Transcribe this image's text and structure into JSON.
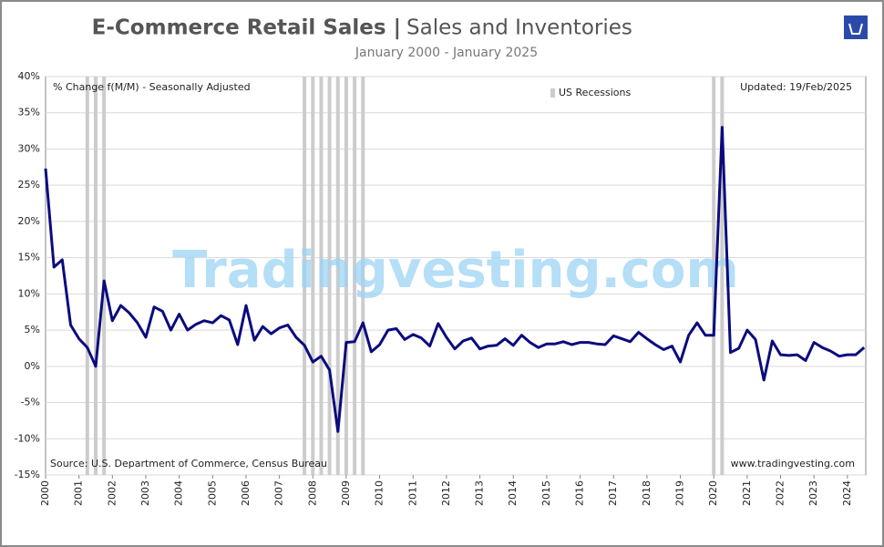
{
  "chart_data": {
    "type": "line",
    "title": "E-Commerce Retail Sales |",
    "title_suffix": "Sales and Inventories",
    "subtitle": "January 2000 - January 2025",
    "y_annotation": "% Change f(M/M) - Seasonally Adjusted",
    "updated": "Updated: 19/Feb/2025",
    "source": "Source: U.S. Department of Commerce, Census Bureau",
    "website": "www.tradingvesting.com",
    "watermark": "Tradingvesting.com",
    "recession_label": "US Recessions",
    "recession_color": "#cccccc",
    "recessions": [
      2001.25,
      2001.5,
      2001.75,
      2007.75,
      2008,
      2008.25,
      2008.5,
      2008.75,
      2009,
      2009.25,
      2009.5,
      2020,
      2020.25
    ],
    "x": [
      2000,
      2000.25,
      2000.5,
      2000.75,
      2001,
      2001.25,
      2001.5,
      2001.75,
      2002,
      2002.25,
      2002.5,
      2002.75,
      2003,
      2003.25,
      2003.5,
      2003.75,
      2004,
      2004.25,
      2004.5,
      2004.75,
      2005,
      2005.25,
      2005.5,
      2005.75,
      2006,
      2006.25,
      2006.5,
      2006.75,
      2007,
      2007.25,
      2007.5,
      2007.75,
      2008,
      2008.25,
      2008.5,
      2008.75,
      2009,
      2009.25,
      2009.5,
      2009.75,
      2010,
      2010.25,
      2010.5,
      2010.75,
      2011,
      2011.25,
      2011.5,
      2011.75,
      2012,
      2012.25,
      2012.5,
      2012.75,
      2013,
      2013.25,
      2013.5,
      2013.75,
      2014,
      2014.25,
      2014.5,
      2014.75,
      2015,
      2015.25,
      2015.5,
      2015.75,
      2016,
      2016.25,
      2016.5,
      2016.75,
      2017,
      2017.25,
      2017.5,
      2017.75,
      2018,
      2018.25,
      2018.5,
      2018.75,
      2019,
      2019.25,
      2019.5,
      2019.75,
      2020,
      2020.25,
      2020.5,
      2020.75,
      2021,
      2021.25,
      2021.5,
      2021.75,
      2022,
      2022.25,
      2022.5,
      2022.75,
      2023,
      2023.25,
      2023.5,
      2023.75,
      2024,
      2024.25,
      2024.5
    ],
    "series": [
      {
        "name": "E-Commerce Retail Sales",
        "color": "#0b0b7e",
        "values": [
          27.3,
          13.7,
          14.7,
          5.7,
          3.8,
          2.6,
          0,
          11.8,
          6.3,
          8.4,
          7.4,
          6.0,
          4.0,
          8.2,
          7.6,
          5.0,
          7.2,
          5.0,
          5.8,
          6.3,
          6.0,
          7.0,
          6.4,
          3.0,
          8.4,
          3.6,
          5.5,
          4.5,
          5.3,
          5.7,
          4.0,
          2.9,
          0.6,
          1.4,
          -0.5,
          -9.0,
          3.3,
          3.4,
          6.0,
          2.0,
          3.0,
          5.0,
          5.2,
          3.7,
          4.4,
          3.9,
          2.8,
          5.9,
          4.0,
          2.4,
          3.5,
          3.9,
          2.4,
          2.8,
          2.9,
          3.8,
          2.9,
          4.3,
          3.3,
          2.6,
          3.1,
          3.1,
          3.4,
          3.0,
          3.3,
          3.3,
          3.1,
          3.0,
          4.2,
          3.8,
          3.4,
          4.7,
          3.8,
          3.0,
          2.3,
          2.8,
          0.6,
          4.3,
          6.0,
          4.3,
          4.3,
          33.0,
          1.9,
          2.5,
          5.0,
          3.7,
          -1.9,
          3.5,
          1.6,
          1.5,
          1.6,
          0.8,
          3.3,
          2.6,
          2.1,
          1.4,
          1.6,
          1.6,
          2.6
        ]
      }
    ],
    "xlim": [
      2000,
      2024.55
    ],
    "xticks": [
      2000,
      2001,
      2002,
      2003,
      2004,
      2005,
      2006,
      2007,
      2008,
      2009,
      2010,
      2011,
      2012,
      2013,
      2014,
      2015,
      2016,
      2017,
      2018,
      2019,
      2020,
      2021,
      2022,
      2023,
      2024
    ],
    "ylim": [
      -15,
      40
    ],
    "yticks": [
      {
        "value": -15,
        "label": "-15%"
      },
      {
        "value": -10,
        "label": "-10%"
      },
      {
        "value": -5,
        "label": "-5%"
      },
      {
        "value": 0,
        "label": "0%"
      },
      {
        "value": 5,
        "label": "5%"
      },
      {
        "value": 10,
        "label": "10%"
      },
      {
        "value": 15,
        "label": "15%"
      },
      {
        "value": 20,
        "label": "20%"
      },
      {
        "value": 25,
        "label": "25%"
      },
      {
        "value": 30,
        "label": "30%"
      },
      {
        "value": 35,
        "label": "35%"
      },
      {
        "value": 40,
        "label": "40%"
      }
    ],
    "grid": true
  }
}
